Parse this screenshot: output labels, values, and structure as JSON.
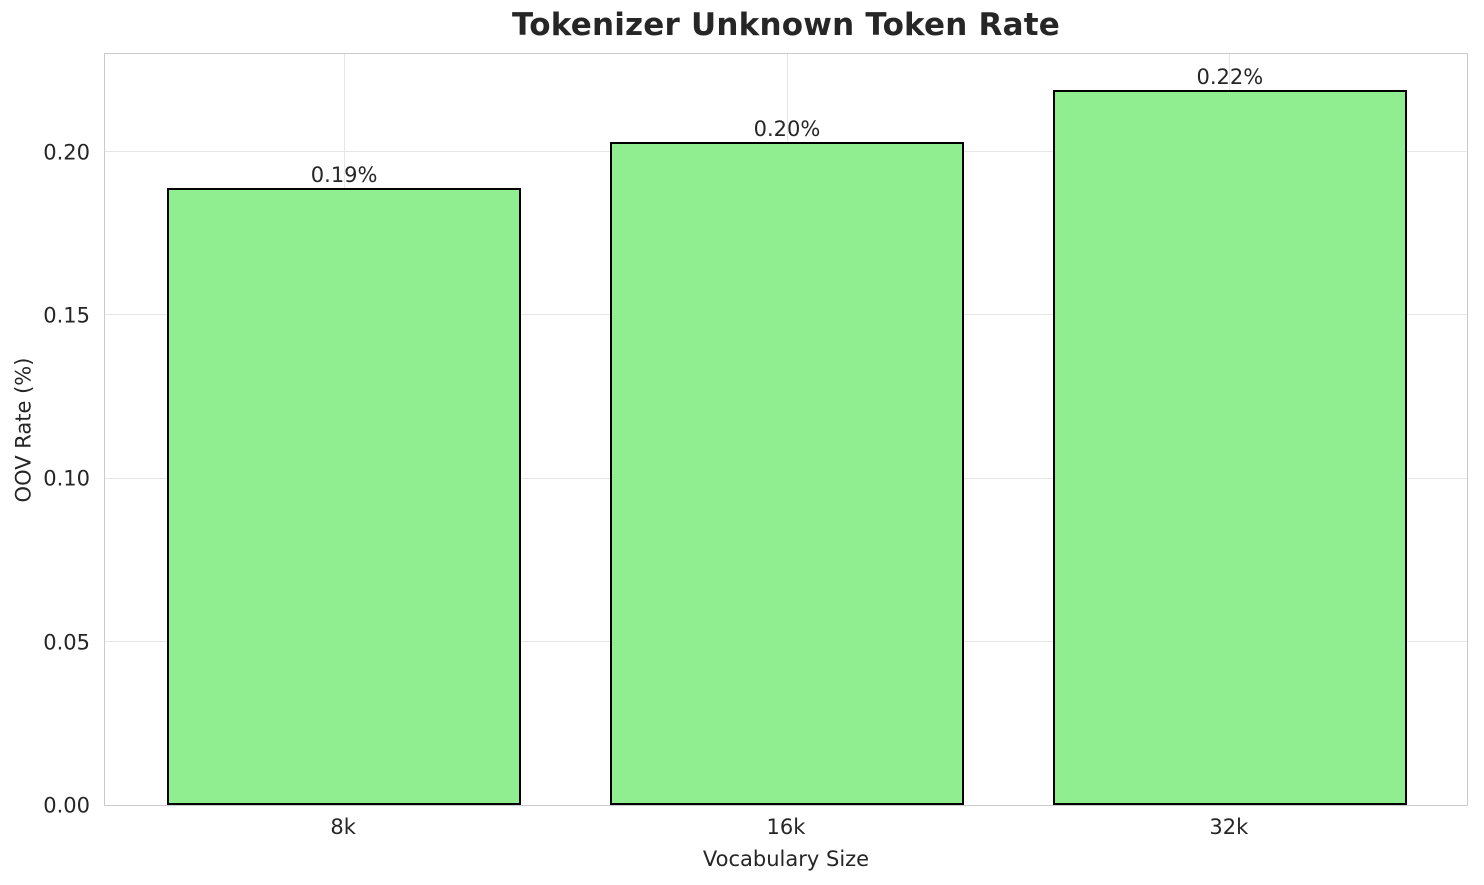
{
  "chart_data": {
    "type": "bar",
    "title": "Tokenizer Unknown Token Rate",
    "xlabel": "Vocabulary Size",
    "ylabel": "OOV Rate (%)",
    "categories": [
      "8k",
      "16k",
      "32k"
    ],
    "values": [
      0.189,
      0.203,
      0.219
    ],
    "bar_labels": [
      "0.19%",
      "0.20%",
      "0.22%"
    ],
    "yticks": [
      0.0,
      0.05,
      0.1,
      0.15,
      0.2
    ],
    "ytick_labels": [
      "0.00",
      "0.05",
      "0.10",
      "0.15",
      "0.20"
    ],
    "ylim": [
      0,
      0.2305
    ],
    "grid": true,
    "legend": false,
    "bar_color": "#90ee90",
    "bar_edge_color": "#000000",
    "grid_color": "#e6e6e6",
    "spine_color": "#cbcbcb",
    "text_color": "#262626"
  }
}
